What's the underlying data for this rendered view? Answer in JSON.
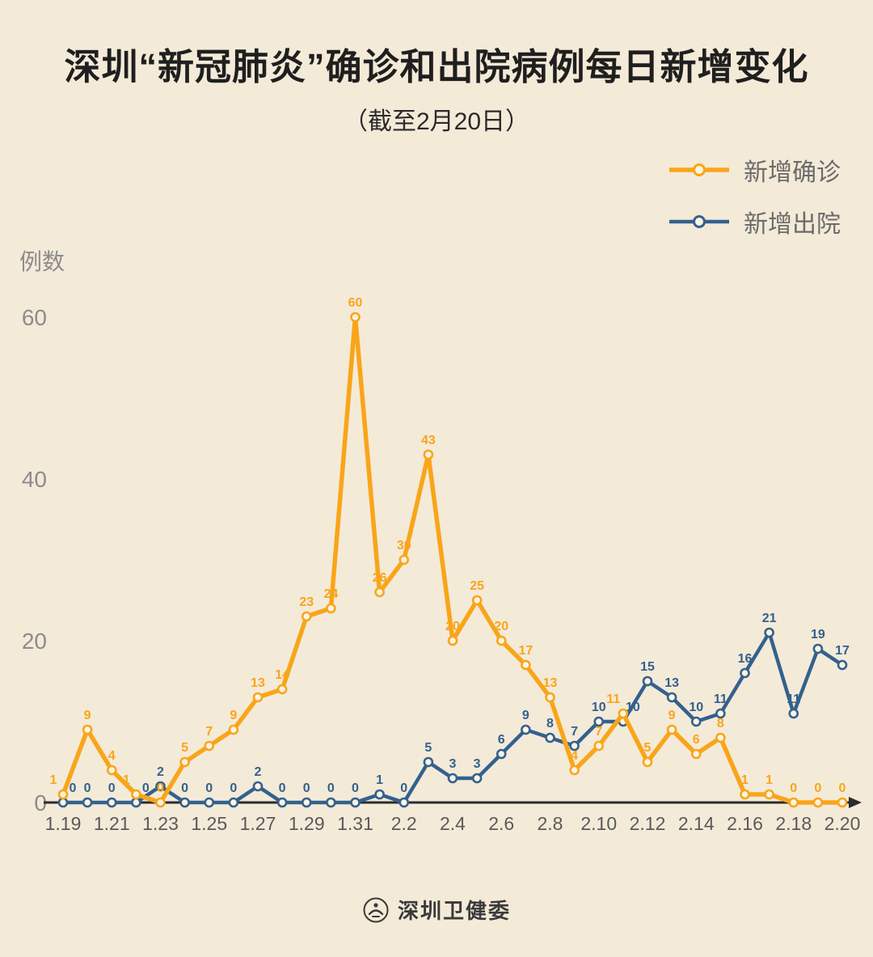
{
  "page": {
    "background": "#f4ead8"
  },
  "header": {
    "title": "深圳“新冠肺炎”确诊和出院病例每日新增变化",
    "subtitle": "（截至2月20日）"
  },
  "footer": {
    "source": "深圳卫健委",
    "logo_icon": "shenzhen-health-commission-seal"
  },
  "chart_data": {
    "type": "line",
    "title": "深圳“新冠肺炎”确诊和出院病例每日新增变化",
    "subtitle": "（截至2月20日）",
    "xlabel": "",
    "ylabel": "例数",
    "ylim": [
      0,
      60
    ],
    "yticks": [
      0,
      20,
      40,
      60
    ],
    "grid": false,
    "legend_position": "top-right",
    "x": [
      "1.19",
      "1.20",
      "1.21",
      "1.22",
      "1.23",
      "1.24",
      "1.25",
      "1.26",
      "1.27",
      "1.28",
      "1.29",
      "1.30",
      "1.31",
      "2.1",
      "2.2",
      "2.3",
      "2.4",
      "2.5",
      "2.6",
      "2.7",
      "2.8",
      "2.9",
      "2.10",
      "2.11",
      "2.12",
      "2.13",
      "2.14",
      "2.15",
      "2.16",
      "2.17",
      "2.18",
      "2.19",
      "2.20"
    ],
    "xtick_labels": [
      "1.19",
      "1.21",
      "1.23",
      "1.25",
      "1.27",
      "1.29",
      "1.31",
      "2.2",
      "2.4",
      "2.6",
      "2.8",
      "2.10",
      "2.12",
      "2.14",
      "2.16",
      "2.18",
      "2.20"
    ],
    "series": [
      {
        "name": "新增确诊",
        "color": "#F9A51A",
        "values": [
          1,
          9,
          4,
          1,
          0,
          5,
          7,
          9,
          13,
          14,
          23,
          24,
          60,
          26,
          30,
          43,
          20,
          25,
          20,
          17,
          13,
          4,
          7,
          11,
          5,
          9,
          6,
          8,
          1,
          1,
          0,
          0,
          0
        ]
      },
      {
        "name": "新增出院",
        "color": "#33618E",
        "values": [
          0,
          0,
          0,
          0,
          2,
          0,
          0,
          0,
          2,
          0,
          0,
          0,
          0,
          1,
          0,
          5,
          3,
          3,
          6,
          9,
          8,
          7,
          10,
          10,
          15,
          13,
          10,
          11,
          16,
          21,
          11,
          19,
          17
        ]
      }
    ],
    "colors": {
      "axis": "#2b2b2b",
      "tick_text": "#8c8c8c",
      "marker_fill": "#fcf4e3"
    }
  }
}
